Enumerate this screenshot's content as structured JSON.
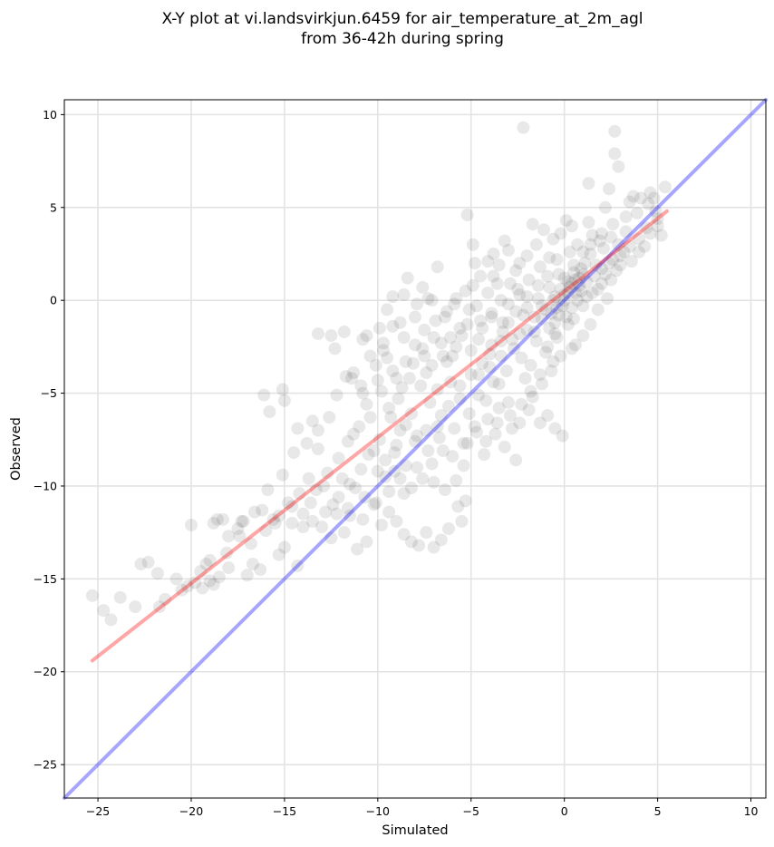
{
  "chart_data": {
    "type": "scatter",
    "title_lines": [
      "X-Y plot at vi.landsvirkjun.6459 for air_temperature_at_2m_agl",
      "from 36-42h during spring"
    ],
    "xlabel": "Simulated",
    "ylabel": "Observed",
    "xlim": [
      -26.8,
      10.8
    ],
    "ylim": [
      -26.8,
      10.8
    ],
    "x_ticks": [
      -25,
      -20,
      -15,
      -10,
      -5,
      0,
      5,
      10
    ],
    "x_tick_labels": [
      "−25",
      "−20",
      "−15",
      "−10",
      "−5",
      "0",
      "5",
      "10"
    ],
    "y_ticks": [
      -25,
      -20,
      -15,
      -10,
      -5,
      0,
      5,
      10
    ],
    "y_tick_labels": [
      "−25",
      "−20",
      "−15",
      "−10",
      "−5",
      "0",
      "5",
      "10"
    ],
    "grid": true,
    "point_color": "#000000",
    "point_opacity": 0.09,
    "lines": [
      {
        "kind": "identity",
        "color": "#0000ff",
        "opacity": 0.35,
        "x": [
          -26.8,
          10.8
        ],
        "y": [
          -26.8,
          10.8
        ]
      },
      {
        "kind": "fit",
        "color": "#ff0000",
        "opacity": 0.35,
        "x": [
          -25.3,
          5.5
        ],
        "y": [
          -19.4,
          4.8
        ]
      }
    ],
    "points": [
      [
        -25.3,
        -15.9
      ],
      [
        -24.7,
        -16.7
      ],
      [
        -24.3,
        -17.2
      ],
      [
        -23.8,
        -16.0
      ],
      [
        -23.0,
        -16.5
      ],
      [
        -22.7,
        -14.2
      ],
      [
        -22.3,
        -14.1
      ],
      [
        -21.8,
        -14.7
      ],
      [
        -21.7,
        -16.5
      ],
      [
        -21.4,
        -16.1
      ],
      [
        -20.0,
        -12.1
      ],
      [
        -20.2,
        -15.4
      ],
      [
        -19.4,
        -15.5
      ],
      [
        -19.0,
        -15.1
      ],
      [
        -18.8,
        -15.3
      ],
      [
        -19.2,
        -14.2
      ],
      [
        -18.6,
        -11.8
      ],
      [
        -18.3,
        -11.8
      ],
      [
        -18.0,
        -14.4
      ],
      [
        -17.5,
        -12.3
      ],
      [
        -17.0,
        -14.8
      ],
      [
        -16.7,
        -14.2
      ],
      [
        -16.3,
        -14.5
      ],
      [
        -16.2,
        -11.3
      ],
      [
        -15.6,
        -11.8
      ],
      [
        -15.3,
        -13.7
      ],
      [
        -15.0,
        -13.3
      ],
      [
        -14.6,
        -12.0
      ],
      [
        -14.3,
        -14.3
      ],
      [
        -14.0,
        -11.5
      ],
      [
        -13.5,
        -11.9
      ],
      [
        -13.0,
        -12.2
      ],
      [
        -12.5,
        -12.8
      ],
      [
        -12.2,
        -11.5
      ],
      [
        -11.8,
        -12.5
      ],
      [
        -11.5,
        -11.6
      ],
      [
        -11.1,
        -13.4
      ],
      [
        -10.6,
        -13.0
      ],
      [
        -10.2,
        -11.0
      ],
      [
        -9.8,
        -12.1
      ],
      [
        -9.4,
        -11.4
      ],
      [
        -9.0,
        -11.9
      ],
      [
        -8.6,
        -12.6
      ],
      [
        -8.2,
        -13.0
      ],
      [
        -7.8,
        -13.2
      ],
      [
        -7.4,
        -12.5
      ],
      [
        -7.0,
        -13.3
      ],
      [
        -6.6,
        -12.9
      ],
      [
        -6.2,
        -12.3
      ],
      [
        -5.7,
        -11.1
      ],
      [
        -5.5,
        -11.9
      ],
      [
        -5.3,
        -10.8
      ],
      [
        -16.1,
        -5.1
      ],
      [
        -15.8,
        -6.0
      ],
      [
        -15.1,
        -4.8
      ],
      [
        -15.0,
        -5.4
      ],
      [
        -14.3,
        -6.9
      ],
      [
        -13.5,
        -6.5
      ],
      [
        -13.2,
        -1.8
      ],
      [
        -12.5,
        -1.9
      ],
      [
        -12.3,
        -2.6
      ],
      [
        -11.8,
        -1.7
      ],
      [
        -10.8,
        -2.1
      ],
      [
        -10.6,
        -1.9
      ],
      [
        -11.7,
        -4.1
      ],
      [
        -11.3,
        -3.9
      ],
      [
        -10.9,
        -4.6
      ],
      [
        -10.1,
        -3.5
      ],
      [
        -9.7,
        -2.3
      ],
      [
        -9.5,
        -0.5
      ],
      [
        -9.2,
        0.2
      ],
      [
        -8.6,
        0.3
      ],
      [
        -8.4,
        1.2
      ],
      [
        -7.6,
        0.7
      ],
      [
        -7.3,
        0.1
      ],
      [
        -6.8,
        1.8
      ],
      [
        -6.4,
        -0.9
      ],
      [
        -5.2,
        4.6
      ],
      [
        -4.9,
        3.0
      ],
      [
        -4.8,
        2.0
      ],
      [
        -4.5,
        1.3
      ],
      [
        -4.1,
        2.1
      ],
      [
        -3.8,
        2.5
      ],
      [
        -3.5,
        1.9
      ],
      [
        -3.2,
        3.2
      ],
      [
        -3.0,
        2.7
      ],
      [
        -2.4,
        2.0
      ],
      [
        -2.0,
        2.4
      ],
      [
        -1.7,
        4.1
      ],
      [
        -1.1,
        3.8
      ],
      [
        -0.6,
        3.3
      ],
      [
        -0.2,
        3.6
      ],
      [
        -2.2,
        9.3
      ],
      [
        0.1,
        4.3
      ],
      [
        2.7,
        9.1
      ],
      [
        2.7,
        7.9
      ],
      [
        2.9,
        7.2
      ],
      [
        1.3,
        6.3
      ],
      [
        2.4,
        6.0
      ],
      [
        3.5,
        5.3
      ],
      [
        4.1,
        5.5
      ],
      [
        4.6,
        5.8
      ],
      [
        5.4,
        6.1
      ],
      [
        4.9,
        4.8
      ],
      [
        5.0,
        4.0
      ],
      [
        4.3,
        2.9
      ],
      [
        5.2,
        3.5
      ],
      [
        2.3,
        0.1
      ],
      [
        -0.5,
        -1.8
      ],
      [
        0.2,
        -1.3
      ],
      [
        0.6,
        -2.4
      ],
      [
        -0.6,
        -3.3
      ],
      [
        -0.9,
        -2.5
      ],
      [
        -1.3,
        -4.0
      ],
      [
        -1.7,
        -5.2
      ],
      [
        -2.1,
        -4.2
      ],
      [
        -2.6,
        -8.6
      ],
      [
        -2.4,
        -6.6
      ],
      [
        -1.9,
        -5.9
      ],
      [
        -1.3,
        -6.6
      ],
      [
        -0.9,
        -6.2
      ],
      [
        -0.5,
        -6.9
      ],
      [
        -0.1,
        -7.3
      ],
      [
        -3.7,
        -7.2
      ],
      [
        -4.3,
        -8.3
      ],
      [
        -5.4,
        -8.9
      ],
      [
        -5.8,
        -9.7
      ],
      [
        -6.4,
        -10.2
      ],
      [
        -7.0,
        -9.8
      ],
      [
        -7.9,
        -9.0
      ],
      [
        -8.6,
        -10.4
      ],
      [
        -9.1,
        -9.2
      ],
      [
        -3.0,
        -5.5
      ],
      [
        -3.5,
        -4.5
      ],
      [
        -4.0,
        -3.6
      ],
      [
        -4.6,
        -5.1
      ],
      [
        -5.1,
        -6.1
      ],
      [
        -5.6,
        -5.3
      ],
      [
        -6.1,
        -4.4
      ],
      [
        -6.6,
        -6.2
      ],
      [
        -7.2,
        -5.5
      ],
      [
        -7.7,
        -4.6
      ],
      [
        -8.2,
        -6.1
      ],
      [
        -8.8,
        -7.0
      ],
      [
        -9.3,
        -6.3
      ],
      [
        -9.9,
        -7.5
      ],
      [
        -10.5,
        -8.3
      ],
      [
        -11.0,
        -6.8
      ],
      [
        -11.6,
        -7.6
      ],
      [
        -12.1,
        -8.5
      ],
      [
        -12.7,
        -9.3
      ],
      [
        -13.2,
        -8.0
      ],
      [
        -13.7,
        -9.6
      ],
      [
        -14.2,
        -10.4
      ],
      [
        -14.8,
        -10.9
      ],
      [
        -15.3,
        -11.6
      ],
      [
        -16.0,
        -12.4
      ],
      [
        -16.8,
        -13.1
      ],
      [
        -17.4,
        -12.7
      ],
      [
        -18.1,
        -13.6
      ],
      [
        -19.0,
        -14.0
      ],
      [
        -13.6,
        -10.9
      ],
      [
        -12.9,
        -10.0
      ],
      [
        -12.4,
        -11.0
      ],
      [
        -11.9,
        -9.6
      ],
      [
        -11.2,
        -10.1
      ],
      [
        -10.7,
        -10.6
      ],
      [
        -10.0,
        -9.2
      ],
      [
        -9.6,
        -8.6
      ],
      [
        -9.0,
        -7.8
      ],
      [
        -8.5,
        -8.9
      ],
      [
        -7.9,
        -7.3
      ],
      [
        -7.3,
        -8.1
      ],
      [
        -6.7,
        -7.4
      ],
      [
        -6.0,
        -8.4
      ],
      [
        -5.4,
        -7.7
      ],
      [
        -4.8,
        -6.8
      ],
      [
        -4.2,
        -7.6
      ],
      [
        -3.6,
        -6.6
      ],
      [
        -3.2,
        -7.9
      ],
      [
        -2.8,
        -6.9
      ],
      [
        -10.6,
        -5.6
      ],
      [
        -9.8,
        -4.9
      ],
      [
        -9.2,
        -3.8
      ],
      [
        -8.7,
        -4.7
      ],
      [
        -8.1,
        -3.4
      ],
      [
        -7.6,
        -2.6
      ],
      [
        -7.1,
        -3.5
      ],
      [
        -6.6,
        -2.3
      ],
      [
        -6.0,
        -3.0
      ],
      [
        -5.5,
        -1.9
      ],
      [
        -5.0,
        -2.7
      ],
      [
        -4.4,
        -1.5
      ],
      [
        -3.9,
        -2.4
      ],
      [
        -3.3,
        -1.2
      ],
      [
        -2.8,
        -2.1
      ],
      [
        -2.2,
        -0.8
      ],
      [
        -1.6,
        -1.7
      ],
      [
        -1.0,
        -0.5
      ],
      [
        -0.5,
        -1.2
      ],
      [
        0.0,
        0.3
      ],
      [
        0.4,
        -0.4
      ],
      [
        0.8,
        0.8
      ],
      [
        1.2,
        0.2
      ],
      [
        1.6,
        1.3
      ],
      [
        2.0,
        0.9
      ],
      [
        2.4,
        2.0
      ],
      [
        2.8,
        1.6
      ],
      [
        3.2,
        2.6
      ],
      [
        3.6,
        2.1
      ],
      [
        4.0,
        3.3
      ],
      [
        4.4,
        3.9
      ],
      [
        1.0,
        2.6
      ],
      [
        0.5,
        1.9
      ],
      [
        -0.3,
        1.4
      ],
      [
        -0.8,
        0.7
      ],
      [
        -1.4,
        0.1
      ],
      [
        -2.0,
        -0.4
      ],
      [
        -2.5,
        0.6
      ],
      [
        -3.0,
        -0.2
      ],
      [
        -3.6,
        0.9
      ],
      [
        -4.1,
        0.4
      ],
      [
        -4.7,
        -0.3
      ],
      [
        -5.3,
        0.5
      ],
      [
        -5.8,
        0.1
      ],
      [
        -6.3,
        -0.6
      ],
      [
        -6.9,
        -1.1
      ],
      [
        -7.5,
        -1.6
      ],
      [
        -8.0,
        -0.9
      ],
      [
        -8.6,
        -2.0
      ],
      [
        -9.2,
        -1.4
      ],
      [
        -9.7,
        -2.7
      ],
      [
        0.2,
        1.0
      ],
      [
        0.5,
        1.5
      ],
      [
        0.8,
        1.2
      ],
      [
        1.1,
        2.0
      ],
      [
        -0.2,
        0.6
      ],
      [
        0.0,
        1.2
      ],
      [
        0.3,
        0.7
      ],
      [
        0.6,
        0.4
      ],
      [
        -0.5,
        0.2
      ],
      [
        -0.1,
        -0.3
      ],
      [
        0.9,
        1.7
      ],
      [
        1.4,
        2.5
      ],
      [
        1.7,
        1.9
      ],
      [
        2.1,
        2.8
      ],
      [
        2.5,
        3.4
      ],
      [
        2.9,
        3.0
      ],
      [
        3.3,
        3.7
      ],
      [
        1.9,
        3.2
      ],
      [
        1.5,
        3.5
      ],
      [
        -1.2,
        -1.0
      ],
      [
        -0.7,
        -0.7
      ],
      [
        -1.5,
        -2.2
      ],
      [
        -2.0,
        -1.6
      ],
      [
        -2.3,
        -3.1
      ],
      [
        -2.7,
        -2.6
      ],
      [
        -3.1,
        -3.8
      ],
      [
        -3.4,
        -3.0
      ],
      [
        -3.8,
        -4.4
      ],
      [
        -4.2,
        -5.4
      ],
      [
        -4.6,
        -4.0
      ],
      [
        -1.8,
        -3.5
      ],
      [
        -1.0,
        -2.8
      ],
      [
        -0.4,
        -2.0
      ],
      [
        0.1,
        -0.9
      ],
      [
        0.7,
        0.0
      ],
      [
        1.2,
        1.0
      ],
      [
        1.8,
        0.6
      ],
      [
        2.2,
        1.4
      ],
      [
        2.6,
        2.2
      ],
      [
        3.0,
        2.4
      ],
      [
        -0.8,
        -1.5
      ],
      [
        -0.3,
        -0.8
      ],
      [
        0.4,
        0.9
      ],
      [
        1.0,
        1.4
      ],
      [
        0.0,
        0.0
      ],
      [
        0.2,
        0.4
      ],
      [
        -0.4,
        -0.4
      ],
      [
        0.6,
        1.1
      ],
      [
        -0.6,
        0.0
      ],
      [
        0.9,
        0.5
      ],
      [
        -1.2,
        -0.3
      ],
      [
        -1.6,
        -0.9
      ],
      [
        -2.4,
        -1.8
      ],
      [
        -3.0,
        -1.2
      ],
      [
        -3.4,
        -2.2
      ],
      [
        -4.0,
        -2.9
      ],
      [
        -4.4,
        -3.4
      ],
      [
        -5.0,
        -4.0
      ],
      [
        -5.6,
        -4.6
      ],
      [
        -6.2,
        -5.7
      ],
      [
        -6.8,
        -6.8
      ],
      [
        -7.4,
        -7.0
      ],
      [
        -8.0,
        -7.6
      ],
      [
        -8.5,
        -6.7
      ],
      [
        -9.1,
        -8.2
      ],
      [
        -9.6,
        -9.5
      ],
      [
        -10.2,
        -8.1
      ],
      [
        -10.9,
        -9.1
      ],
      [
        -11.5,
        -9.9
      ],
      [
        -12.1,
        -10.6
      ],
      [
        -12.8,
        -11.4
      ],
      [
        -13.3,
        -10.2
      ],
      [
        -14.0,
        -12.2
      ],
      [
        -14.6,
        -11.1
      ],
      [
        -15.5,
        -12.0
      ],
      [
        -17.2,
        -11.9
      ],
      [
        -18.5,
        -14.9
      ],
      [
        -19.8,
        -15.2
      ],
      [
        -20.5,
        -15.6
      ],
      [
        -11.3,
        -7.2
      ],
      [
        -10.4,
        -6.3
      ],
      [
        -9.4,
        -5.8
      ],
      [
        -8.9,
        -5.3
      ],
      [
        -8.3,
        -4.2
      ],
      [
        -7.4,
        -3.9
      ],
      [
        -6.8,
        -4.8
      ],
      [
        -6.3,
        -3.3
      ],
      [
        -5.8,
        -2.5
      ],
      [
        -5.2,
        -1.3
      ],
      [
        -4.6,
        -2.1
      ],
      [
        -3.9,
        -0.7
      ],
      [
        -3.3,
        -1.7
      ],
      [
        -2.6,
        -0.6
      ],
      [
        -2.0,
        0.2
      ],
      [
        -1.4,
        0.8
      ],
      [
        -0.9,
        1.3
      ],
      [
        -0.4,
        2.2
      ],
      [
        0.3,
        2.6
      ],
      [
        0.7,
        3.0
      ],
      [
        1.4,
        3.0
      ],
      [
        2.0,
        3.6
      ],
      [
        2.6,
        4.1
      ],
      [
        3.3,
        4.5
      ],
      [
        3.9,
        4.7
      ],
      [
        4.5,
        5.2
      ],
      [
        4.8,
        5.5
      ],
      [
        3.7,
        5.6
      ],
      [
        2.2,
        5.0
      ],
      [
        1.3,
        4.2
      ],
      [
        0.4,
        4.0
      ],
      [
        -1.5,
        3.0
      ],
      [
        -2.6,
        1.6
      ],
      [
        -3.8,
        1.3
      ],
      [
        -4.9,
        0.8
      ],
      [
        -5.9,
        -0.2
      ],
      [
        -7.1,
        0.0
      ],
      [
        -7.9,
        -0.2
      ],
      [
        -8.8,
        -1.2
      ],
      [
        -9.9,
        -1.5
      ],
      [
        -10.4,
        -3.0
      ],
      [
        -11.4,
        -4.2
      ],
      [
        -12.2,
        -5.1
      ],
      [
        -12.6,
        -6.3
      ],
      [
        -13.2,
        -7.0
      ],
      [
        -13.8,
        -7.7
      ],
      [
        -14.5,
        -8.2
      ],
      [
        -15.1,
        -9.4
      ],
      [
        -15.9,
        -10.2
      ],
      [
        -16.6,
        -11.4
      ],
      [
        -17.3,
        -11.9
      ],
      [
        -18.0,
        -12.7
      ],
      [
        -18.8,
        -12.0
      ],
      [
        -19.5,
        -14.6
      ],
      [
        -20.8,
        -15.0
      ],
      [
        -0.8,
        2.3
      ],
      [
        -1.3,
        1.8
      ],
      [
        -1.9,
        1.1
      ],
      [
        -2.4,
        0.3
      ],
      [
        -2.9,
        0.9
      ],
      [
        -3.4,
        0.0
      ],
      [
        -3.9,
        -0.9
      ],
      [
        -4.5,
        -1.1
      ],
      [
        -5.1,
        -0.5
      ],
      [
        -5.6,
        -1.5
      ],
      [
        -6.1,
        -2.0
      ],
      [
        -6.5,
        -3.0
      ],
      [
        -7.0,
        -2.0
      ],
      [
        -7.5,
        -3.0
      ],
      [
        -8.0,
        -2.4
      ],
      [
        -8.5,
        -3.3
      ],
      [
        -9.0,
        -4.2
      ],
      [
        -9.5,
        -3.1
      ],
      [
        -10.0,
        -4.3
      ],
      [
        -10.8,
        -5.0
      ],
      [
        0.5,
        -1.0
      ],
      [
        1.0,
        -0.3
      ],
      [
        1.5,
        0.4
      ],
      [
        2.0,
        1.7
      ],
      [
        2.5,
        1.1
      ],
      [
        3.0,
        1.9
      ],
      [
        3.5,
        2.9
      ],
      [
        4.0,
        2.6
      ],
      [
        4.6,
        3.6
      ],
      [
        5.0,
        4.4
      ],
      [
        1.8,
        -0.5
      ],
      [
        1.4,
        -1.3
      ],
      [
        1.0,
        -1.9
      ],
      [
        0.4,
        -2.6
      ],
      [
        -0.2,
        -3.0
      ],
      [
        -0.7,
        -3.8
      ],
      [
        -1.2,
        -4.5
      ],
      [
        -1.8,
        -4.9
      ],
      [
        -2.3,
        -5.6
      ],
      [
        -2.9,
        -6.2
      ],
      [
        -3.5,
        -5.8
      ],
      [
        -4.1,
        -6.4
      ],
      [
        -4.7,
        -7.1
      ],
      [
        -5.2,
        -7.7
      ],
      [
        -5.9,
        -6.9
      ],
      [
        -6.5,
        -8.1
      ],
      [
        -7.1,
        -8.8
      ],
      [
        -7.6,
        -9.6
      ],
      [
        -8.2,
        -10.1
      ],
      [
        -8.8,
        -9.6
      ],
      [
        -9.4,
        -10.3
      ],
      [
        -10.1,
        -10.9
      ],
      [
        -10.8,
        -11.8
      ],
      [
        -11.6,
        -11.2
      ]
    ]
  }
}
